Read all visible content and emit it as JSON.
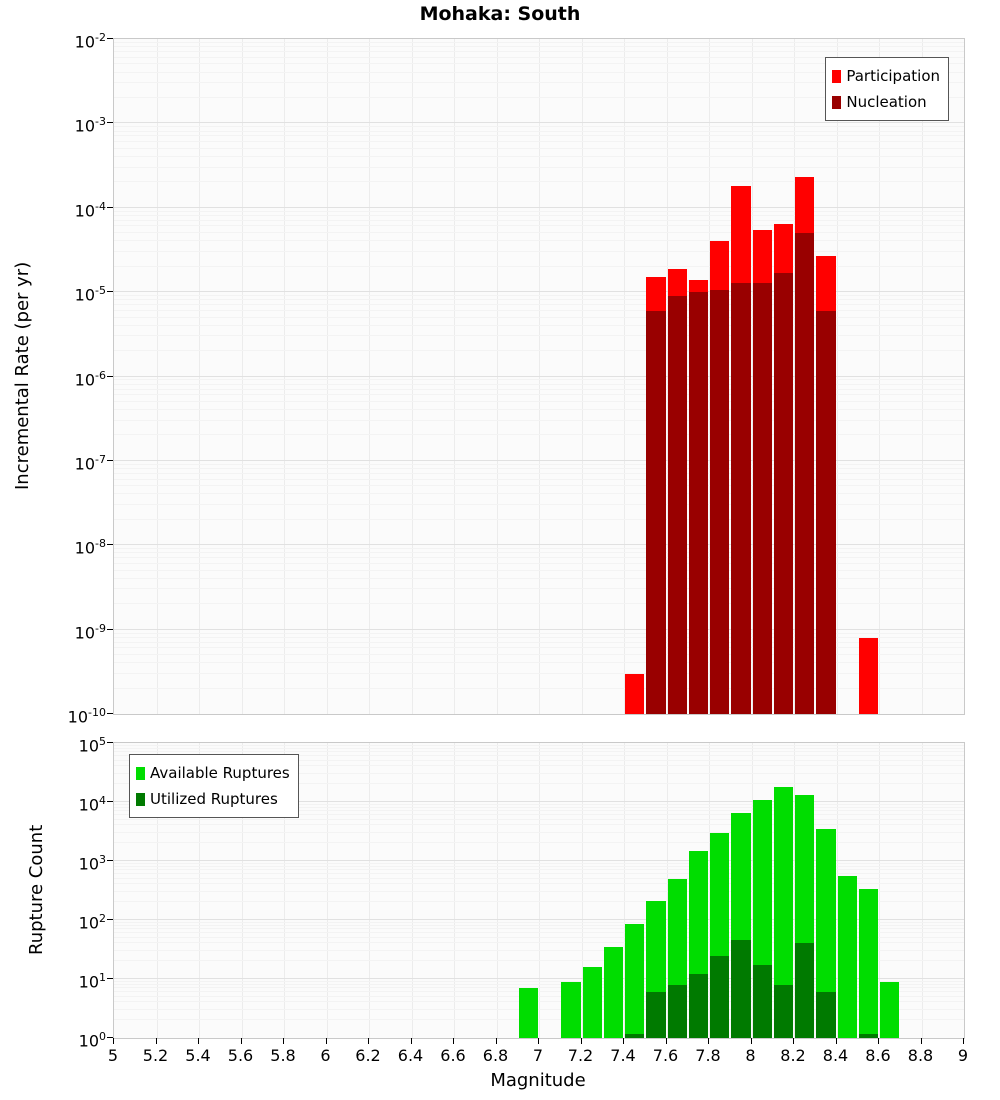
{
  "title": "Mohaka: South",
  "x_axis": {
    "label": "Magnitude",
    "min": 5,
    "max": 9,
    "tick_values": [
      5,
      5.2,
      5.4,
      5.6,
      5.8,
      6,
      6.2,
      6.4,
      6.6,
      6.8,
      7,
      7.2,
      7.4,
      7.6,
      7.8,
      8,
      8.2,
      8.4,
      8.6,
      8.8,
      9
    ],
    "tick_labels": [
      "5",
      "5.2",
      "5.4",
      "5.6",
      "5.8",
      "6",
      "6.2",
      "6.4",
      "6.6",
      "6.8",
      "7",
      "7.2",
      "7.4",
      "7.6",
      "7.8",
      "8",
      "8.2",
      "8.4",
      "8.6",
      "8.8",
      "9"
    ]
  },
  "chart_data": [
    {
      "type": "bar",
      "title": "Mohaka: South",
      "ylabel": "Incremental Rate (per yr)",
      "xlabel": "Magnitude",
      "yscale": "log",
      "ylim_exp": [
        -10,
        -2
      ],
      "xlim": [
        5,
        9
      ],
      "bin_width": 0.1,
      "grid": true,
      "legend_position": "top-right",
      "series": [
        {
          "name": "Participation",
          "color": "#FF0000",
          "x": [
            7.45,
            7.55,
            7.65,
            7.75,
            7.85,
            7.95,
            8.05,
            8.15,
            8.25,
            8.35,
            8.55
          ],
          "y": [
            3e-10,
            1.5e-05,
            1.9e-05,
            1.4e-05,
            4e-05,
            0.00018,
            5.5e-05,
            6.5e-05,
            0.00023,
            2.7e-05,
            8e-10
          ]
        },
        {
          "name": "Nucleation",
          "color": "#990000",
          "x": [
            7.55,
            7.65,
            7.75,
            7.85,
            7.95,
            8.05,
            8.15,
            8.25,
            8.35
          ],
          "y": [
            6e-06,
            9e-06,
            1e-05,
            1.05e-05,
            1.3e-05,
            1.3e-05,
            1.7e-05,
            5e-05,
            6e-06
          ]
        }
      ]
    },
    {
      "type": "bar",
      "title": "",
      "ylabel": "Rupture Count",
      "xlabel": "Magnitude",
      "yscale": "log",
      "ylim_exp": [
        0,
        5
      ],
      "xlim": [
        5,
        9
      ],
      "bin_width": 0.1,
      "grid": true,
      "legend_position": "top-left",
      "series": [
        {
          "name": "Available Ruptures",
          "color": "#00DD00",
          "x": [
            6.95,
            7.15,
            7.25,
            7.35,
            7.45,
            7.55,
            7.65,
            7.75,
            7.85,
            7.95,
            8.05,
            8.15,
            8.25,
            8.35,
            8.45,
            8.55,
            8.65
          ],
          "y": [
            7,
            9,
            16,
            35,
            85,
            210,
            490,
            1500,
            3000,
            6500,
            11000,
            18000,
            13000,
            3500,
            550,
            330,
            9
          ]
        },
        {
          "name": "Utilized Ruptures",
          "color": "#007A00",
          "x": [
            7.45,
            7.55,
            7.65,
            7.75,
            7.85,
            7.95,
            8.05,
            8.15,
            8.25,
            8.35,
            8.55
          ],
          "y": [
            1,
            6,
            8,
            12,
            25,
            45,
            17,
            8,
            40,
            6,
            1
          ]
        }
      ]
    }
  ]
}
